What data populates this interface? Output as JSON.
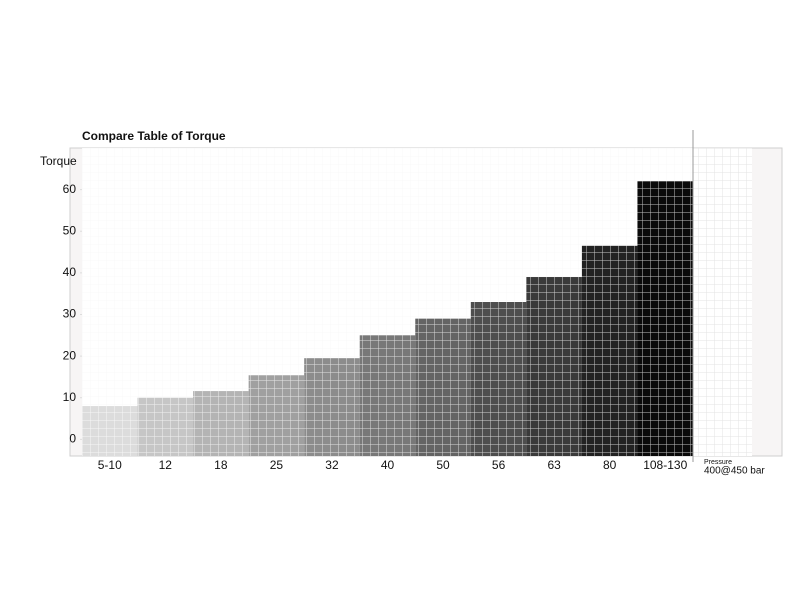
{
  "chart_data": {
    "type": "bar",
    "title": "Compare Table of Torque",
    "y_label": "Torque",
    "categories": [
      "5-10",
      "12",
      "18",
      "25",
      "32",
      "40",
      "50",
      "56",
      "63",
      "80",
      "108-130"
    ],
    "values": [
      8,
      10,
      11.6,
      15.4,
      19.5,
      25,
      29,
      33,
      39,
      46.5,
      62
    ],
    "colors": [
      "#dcdcdc",
      "#c6c6c6",
      "#b4b4b4",
      "#a0a0a0",
      "#8c8c8c",
      "#787878",
      "#646464",
      "#4e4e4e",
      "#3a3a3a",
      "#222222",
      "#0a0a0a"
    ],
    "ylim": [
      -4,
      70
    ],
    "yticks": [
      0,
      10,
      20,
      30,
      40,
      50,
      60
    ],
    "grid": true,
    "annotations": [
      "Pressure",
      "400@450 bar"
    ]
  }
}
